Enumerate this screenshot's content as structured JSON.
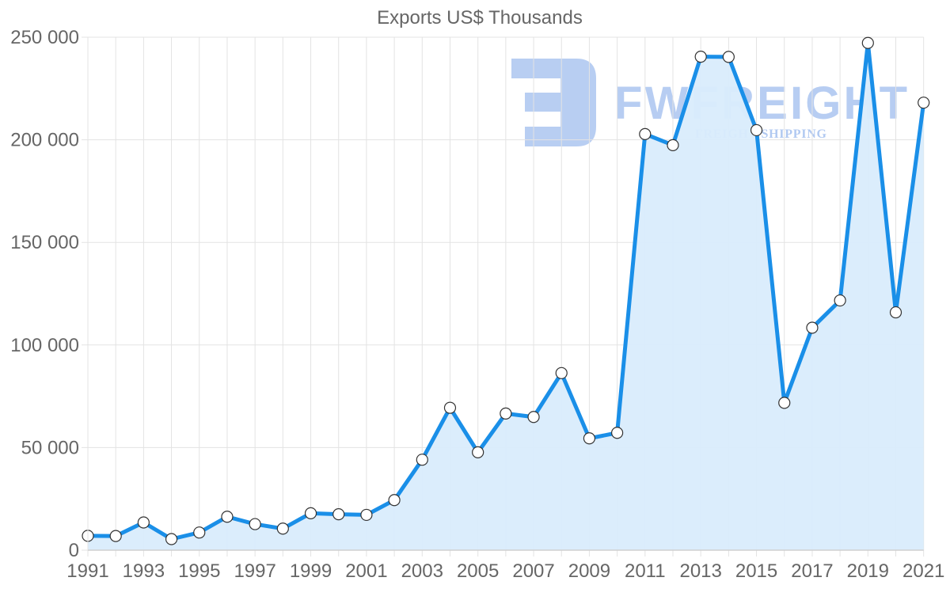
{
  "chart_data": {
    "type": "area",
    "title": "Exports US$ Thousands",
    "xlabel": "",
    "ylabel": "",
    "x": [
      1991,
      1992,
      1993,
      1994,
      1995,
      1996,
      1997,
      1998,
      1999,
      2000,
      2001,
      2002,
      2003,
      2004,
      2005,
      2006,
      2007,
      2008,
      2009,
      2010,
      2011,
      2012,
      2013,
      2014,
      2015,
      2016,
      2017,
      2018,
      2019,
      2020,
      2021
    ],
    "series": [
      {
        "name": "Exports US$ Thousands",
        "values": [
          7000,
          6900,
          13500,
          5400,
          8600,
          16300,
          12700,
          10500,
          18000,
          17500,
          17200,
          24400,
          44100,
          69400,
          47700,
          66600,
          64900,
          86300,
          54500,
          57200,
          202800,
          197400,
          240500,
          240400,
          204700,
          71800,
          108400,
          121700,
          247200,
          115900,
          218100
        ]
      }
    ],
    "ylim": [
      0,
      250000
    ],
    "y_ticks": [
      0,
      50000,
      100000,
      150000,
      200000,
      250000
    ],
    "y_tick_labels": [
      "0",
      "50 000",
      "100 000",
      "150 000",
      "200 000",
      "250 000"
    ],
    "x_tick_labels": [
      "1991",
      "1993",
      "1995",
      "1997",
      "1999",
      "2001",
      "2003",
      "2005",
      "2007",
      "2009",
      "2011",
      "2013",
      "2015",
      "2017",
      "2019",
      "2021"
    ],
    "grid": true,
    "legend": "none",
    "colors": {
      "line": "#1a8fe8",
      "fill": "#d9ecfc",
      "marker_fill": "#ffffff",
      "marker_stroke": "#333333"
    }
  },
  "watermark": {
    "brand": "FWFREIGHT",
    "tagline": "FREIGHT SHIPPING",
    "color": "#7ea6e8"
  }
}
